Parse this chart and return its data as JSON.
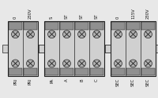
{
  "bg_color": "#e8e8e8",
  "outer_fill": "#d0d0d0",
  "inner_fill": "#c8c8c8",
  "screw_fill": "#b0b0b0",
  "dark_fill": "#909090",
  "line_color": "#222222",
  "white_fill": "#f0f0f0",
  "label_fontsize": 3.8,
  "groups": [
    {
      "id": "PRI",
      "cols": 2,
      "top_labels": [
        "0",
        "230V"
      ],
      "bot_labels": [
        "PRI",
        "PRI"
      ]
    },
    {
      "id": "MID",
      "cols": 4,
      "top_labels": [
        "S",
        "ST",
        "ST",
        "ST"
      ],
      "bot_labels": [
        "PA",
        "A",
        "B",
        "C"
      ]
    },
    {
      "id": "SEC",
      "cols": 3,
      "top_labels": [
        "0",
        "115V",
        "230V"
      ],
      "bot_labels": [
        "SEC",
        "SEC",
        "SEC"
      ]
    }
  ]
}
